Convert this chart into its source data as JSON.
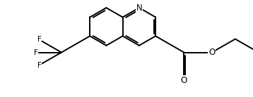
{
  "background_color": "#ffffff",
  "line_color": "#000000",
  "line_width": 1.4,
  "figsize": [
    3.58,
    1.38
  ],
  "dpi": 100,
  "font_size": 8.5,
  "xlim": [
    0,
    10
  ],
  "ylim": [
    0,
    3.86
  ]
}
